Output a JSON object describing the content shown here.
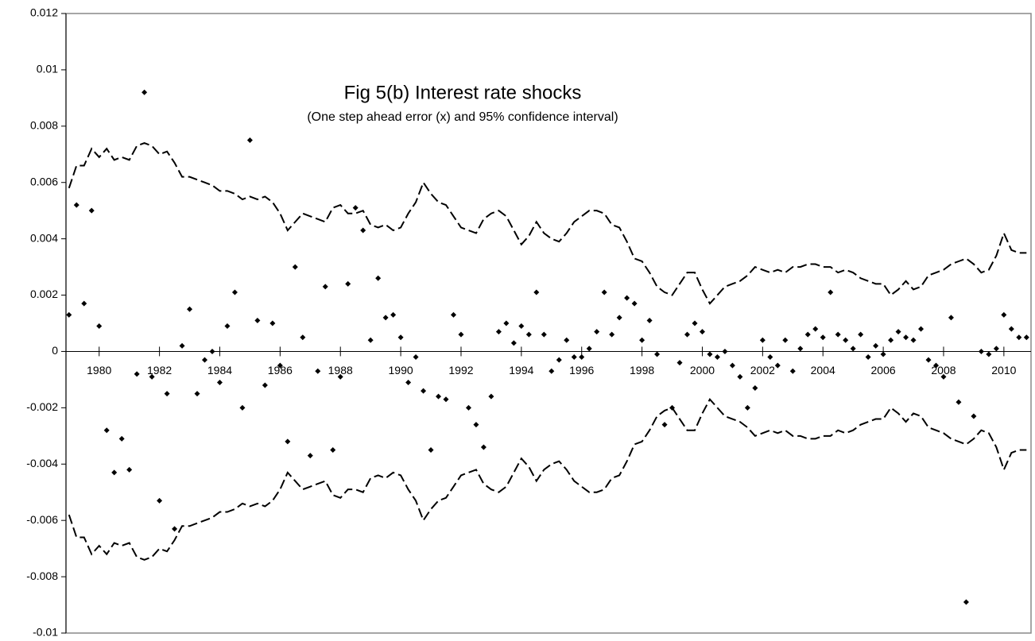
{
  "chart_data": {
    "type": "line",
    "title": "Fig 5(b) Interest rate shocks",
    "subtitle": "(One step ahead error (x) and 95% confidence interval)",
    "x": [
      1979,
      1979.25,
      1979.5,
      1979.75,
      1980,
      1980.25,
      1980.5,
      1980.75,
      1981,
      1981.25,
      1981.5,
      1981.75,
      1982,
      1982.25,
      1982.5,
      1982.75,
      1983,
      1983.25,
      1983.5,
      1983.75,
      1984,
      1984.25,
      1984.5,
      1984.75,
      1985,
      1985.25,
      1985.5,
      1985.75,
      1986,
      1986.25,
      1986.5,
      1986.75,
      1987,
      1987.25,
      1987.5,
      1987.75,
      1988,
      1988.25,
      1988.5,
      1988.75,
      1989,
      1989.25,
      1989.5,
      1989.75,
      1990,
      1990.25,
      1990.5,
      1990.75,
      1991,
      1991.25,
      1991.5,
      1991.75,
      1992,
      1992.25,
      1992.5,
      1992.75,
      1993,
      1993.25,
      1993.5,
      1993.75,
      1994,
      1994.25,
      1994.5,
      1994.75,
      1995,
      1995.25,
      1995.5,
      1995.75,
      1996,
      1996.25,
      1996.5,
      1996.75,
      1997,
      1997.25,
      1997.5,
      1997.75,
      1998,
      1998.25,
      1998.5,
      1998.75,
      1999,
      1999.25,
      1999.5,
      1999.75,
      2000,
      2000.25,
      2000.5,
      2000.75,
      2001,
      2001.25,
      2001.5,
      2001.75,
      2002,
      2002.25,
      2002.5,
      2002.75,
      2003,
      2003.25,
      2003.5,
      2003.75,
      2004,
      2004.25,
      2004.5,
      2004.75,
      2005,
      2005.25,
      2005.5,
      2005.75,
      2006,
      2006.25,
      2006.5,
      2006.75,
      2007,
      2007.25,
      2007.5,
      2007.75,
      2008,
      2008.25,
      2008.5,
      2008.75,
      2009,
      2009.25,
      2009.5,
      2009.75,
      2010,
      2010.25,
      2010.5,
      2010.75
    ],
    "series": [
      {
        "color": "#000000",
        "line": "dashed",
        "values": [
          0.0058,
          0.0066,
          0.0066,
          0.0072,
          0.0069,
          0.0072,
          0.0068,
          0.0069,
          0.0068,
          0.0073,
          0.0074,
          0.0073,
          0.007,
          0.0071,
          0.0067,
          0.0062,
          0.0062,
          0.0061,
          0.006,
          0.0059,
          0.0057,
          0.0057,
          0.0056,
          0.0054,
          0.0055,
          0.0054,
          0.0055,
          0.0053,
          0.0049,
          0.0043,
          0.0046,
          0.0049,
          0.0048,
          0.0047,
          0.0046,
          0.0051,
          0.0052,
          0.0049,
          0.0049,
          0.005,
          0.0045,
          0.0044,
          0.0045,
          0.0043,
          0.0044,
          0.0049,
          0.0053,
          0.006,
          0.0056,
          0.0053,
          0.0052,
          0.0048,
          0.0044,
          0.0043,
          0.0042,
          0.0047,
          0.0049,
          0.005,
          0.0048,
          0.0043,
          0.0038,
          0.0041,
          0.0046,
          0.0042,
          0.004,
          0.0039,
          0.0042,
          0.0046,
          0.0048,
          0.005,
          0.005,
          0.0049,
          0.0045,
          0.0044,
          0.0039,
          0.0033,
          0.0032,
          0.0028,
          0.0023,
          0.0021,
          0.002,
          0.0024,
          0.0028,
          0.0028,
          0.0022,
          0.0017,
          0.002,
          0.0023,
          0.0024,
          0.0025,
          0.0027,
          0.003,
          0.0029,
          0.0028,
          0.0029,
          0.0028,
          0.003,
          0.003,
          0.0031,
          0.0031,
          0.003,
          0.003,
          0.0028,
          0.0029,
          0.0028,
          0.0026,
          0.0025,
          0.0024,
          0.0024,
          0.002,
          0.0022,
          0.0025,
          0.0022,
          0.0023,
          0.0027,
          0.0028,
          0.0029,
          0.0031,
          0.0032,
          0.0033,
          0.0031,
          0.0028,
          0.0029,
          0.0034,
          0.0042,
          0.0036,
          0.0035,
          0.0035
        ]
      },
      {
        "color": "#000000",
        "line": "dashed",
        "values": [
          -0.0058,
          -0.0066,
          -0.0066,
          -0.0072,
          -0.0069,
          -0.0072,
          -0.0068,
          -0.0069,
          -0.0068,
          -0.0073,
          -0.0074,
          -0.0073,
          -0.007,
          -0.0071,
          -0.0067,
          -0.0062,
          -0.0062,
          -0.0061,
          -0.006,
          -0.0059,
          -0.0057,
          -0.0057,
          -0.0056,
          -0.0054,
          -0.0055,
          -0.0054,
          -0.0055,
          -0.0053,
          -0.0049,
          -0.0043,
          -0.0046,
          -0.0049,
          -0.0048,
          -0.0047,
          -0.0046,
          -0.0051,
          -0.0052,
          -0.0049,
          -0.0049,
          -0.005,
          -0.0045,
          -0.0044,
          -0.0045,
          -0.0043,
          -0.0044,
          -0.0049,
          -0.0053,
          -0.006,
          -0.0056,
          -0.0053,
          -0.0052,
          -0.0048,
          -0.0044,
          -0.0043,
          -0.0042,
          -0.0047,
          -0.0049,
          -0.005,
          -0.0048,
          -0.0043,
          -0.0038,
          -0.0041,
          -0.0046,
          -0.0042,
          -0.004,
          -0.0039,
          -0.0042,
          -0.0046,
          -0.0048,
          -0.005,
          -0.005,
          -0.0049,
          -0.0045,
          -0.0044,
          -0.0039,
          -0.0033,
          -0.0032,
          -0.0028,
          -0.0023,
          -0.0021,
          -0.002,
          -0.0024,
          -0.0028,
          -0.0028,
          -0.0022,
          -0.0017,
          -0.002,
          -0.0023,
          -0.0024,
          -0.0025,
          -0.0027,
          -0.003,
          -0.0029,
          -0.0028,
          -0.0029,
          -0.0028,
          -0.003,
          -0.003,
          -0.0031,
          -0.0031,
          -0.003,
          -0.003,
          -0.0028,
          -0.0029,
          -0.0028,
          -0.0026,
          -0.0025,
          -0.0024,
          -0.0024,
          -0.002,
          -0.0022,
          -0.0025,
          -0.0022,
          -0.0023,
          -0.0027,
          -0.0028,
          -0.0029,
          -0.0031,
          -0.0032,
          -0.0033,
          -0.0031,
          -0.0028,
          -0.0029,
          -0.0034,
          -0.0042,
          -0.0036,
          -0.0035,
          -0.0035
        ]
      },
      {
        "color": "#000000",
        "marker": "diamond",
        "values": [
          0.0013,
          0.0052,
          0.0017,
          0.005,
          0.0009,
          -0.0028,
          -0.0043,
          -0.0031,
          -0.0042,
          -0.0008,
          0.0092,
          -0.0009,
          -0.0053,
          -0.0015,
          -0.0063,
          0.0002,
          0.0015,
          -0.0015,
          -0.0003,
          0.0,
          -0.0011,
          0.0009,
          0.0021,
          -0.002,
          0.0075,
          0.0011,
          -0.0012,
          0.001,
          -0.0005,
          -0.0032,
          0.003,
          0.0005,
          -0.0037,
          -0.0007,
          0.0023,
          -0.0035,
          -0.0009,
          0.0024,
          0.0051,
          0.0043,
          0.0004,
          0.0026,
          0.0012,
          0.0013,
          0.0005,
          -0.0011,
          -0.0002,
          -0.0014,
          -0.0035,
          -0.0016,
          -0.0017,
          0.0013,
          0.0006,
          -0.002,
          -0.0026,
          -0.0034,
          -0.0016,
          0.0007,
          0.001,
          0.0003,
          0.0009,
          0.0006,
          0.0021,
          0.0006,
          -0.0007,
          -0.0003,
          0.0004,
          -0.0002,
          -0.0002,
          0.0001,
          0.0007,
          0.0021,
          0.0006,
          0.0012,
          0.0019,
          0.0017,
          0.0004,
          0.0011,
          -0.0001,
          -0.0026,
          -0.002,
          -0.0004,
          0.0006,
          0.001,
          0.0007,
          -0.0001,
          -0.0002,
          0.0,
          -0.0005,
          -0.0009,
          -0.002,
          -0.0013,
          0.0004,
          -0.0002,
          -0.0005,
          0.0004,
          -0.0007,
          0.0001,
          0.0006,
          0.0008,
          0.0005,
          0.0021,
          0.0006,
          0.0004,
          0.0001,
          0.0006,
          -0.0002,
          0.0002,
          -0.0001,
          0.0004,
          0.0007,
          0.0005,
          0.0004,
          0.0008,
          -0.0003,
          -0.0005,
          -0.0009,
          0.0012,
          -0.0018,
          -0.0089,
          -0.0023,
          0.0,
          -0.0001,
          0.0001,
          0.0013,
          0.0008,
          0.0005,
          0.0005
        ]
      }
    ],
    "xlim": [
      1978.9,
      2010.9
    ],
    "xticks": [
      1980,
      1982,
      1984,
      1986,
      1988,
      1990,
      1992,
      1994,
      1996,
      1998,
      2000,
      2002,
      2004,
      2006,
      2008,
      2010
    ],
    "ylim": [
      -0.01,
      0.012
    ],
    "yticks": [
      -0.01,
      -0.008,
      -0.006,
      -0.004,
      -0.002,
      0,
      0.002,
      0.004,
      0.006,
      0.008,
      0.01,
      0.012
    ]
  }
}
